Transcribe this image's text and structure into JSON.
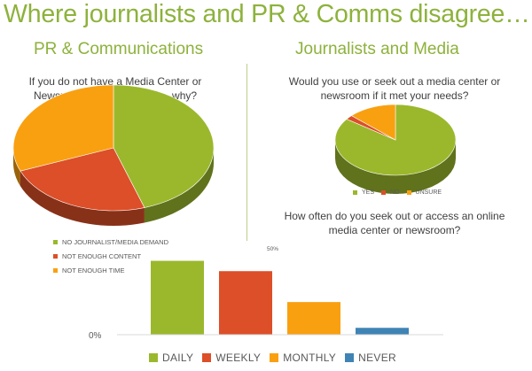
{
  "slide": {
    "title": "Where journalists and PR & Comms disagree…"
  },
  "chart_data": [
    {
      "type": "pie",
      "title": "PR & Communications",
      "subtitle": "If you do not have a Media Center or Newsroom online resource – why?",
      "categories": [
        "NO JOURNALIST/MEDIA DEMAND",
        "NOT ENOUGH CONTENT",
        "NOT ENOUGH TIME"
      ],
      "values": [
        45,
        24,
        31
      ],
      "colors": [
        "#9bb82d",
        "#dc4f28",
        "#f9a011"
      ],
      "legend": "bottom"
    },
    {
      "type": "pie",
      "title": "Journalists and Media",
      "subtitle": "Would you use or seek out a media center or newsroom if it met your needs?",
      "categories": [
        "YES",
        "NO",
        "UNSURE"
      ],
      "values": [
        85,
        2,
        13
      ],
      "colors": [
        "#9bb82d",
        "#dc4f28",
        "#f9a011"
      ],
      "legend": "bottom"
    },
    {
      "type": "bar",
      "subtitle": "How often do you seek out or access an online media center or newsroom?",
      "categories": [
        "DAILY",
        "WEEKLY",
        "MONTHLY",
        "NEVER"
      ],
      "values": [
        43,
        37,
        19,
        4
      ],
      "colors": [
        "#9bb82d",
        "#dc4f28",
        "#f9a011",
        "#3f84b5"
      ],
      "ylim": [
        0,
        50
      ],
      "y_tick_labels": [
        "0%",
        "50%"
      ],
      "grid": false,
      "legend": "bottom"
    }
  ]
}
